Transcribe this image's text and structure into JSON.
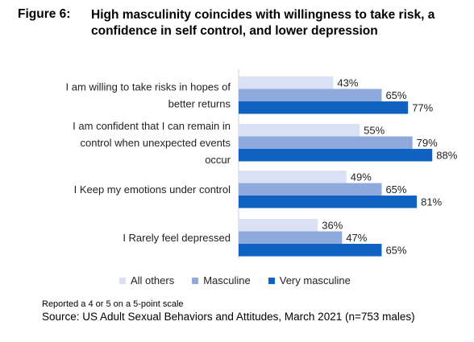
{
  "figure": {
    "label": "Figure 6:",
    "title": "High masculinity coincides with willingness to take risk, a confidence in self control, and lower depression"
  },
  "chart_data": {
    "type": "bar",
    "orientation": "horizontal",
    "categories": [
      [
        "I am willing to take risks in hopes of",
        "better returns"
      ],
      [
        "I am confident that I can remain in",
        "control when unexpected events",
        "occur"
      ],
      [
        "I Keep my emotions under control"
      ],
      [
        "I Rarely feel depressed"
      ]
    ],
    "series": [
      {
        "name": "All others",
        "color": "#dae1f4",
        "values": [
          43,
          55,
          49,
          36
        ],
        "labels": [
          "43%",
          "55%",
          "49%",
          "36%"
        ]
      },
      {
        "name": "Masculine",
        "color": "#8ea9db",
        "values": [
          65,
          79,
          65,
          47
        ],
        "labels": [
          "65%",
          "79%",
          "65%",
          "47%"
        ]
      },
      {
        "name": "Very masculine",
        "color": "#0f62c1",
        "values": [
          77,
          88,
          81,
          65
        ],
        "labels": [
          "77%",
          "88%",
          "81%",
          "65%"
        ]
      }
    ],
    "xlim": [
      0,
      100
    ],
    "grid": false,
    "legend_position": "bottom"
  },
  "legend": {
    "items": [
      {
        "label": "All others",
        "color": "#dae1f4"
      },
      {
        "label": "Masculine",
        "color": "#8ea9db"
      },
      {
        "label": "Very masculine",
        "color": "#0f62c1"
      }
    ]
  },
  "footer": {
    "note": "Reported a 4 or 5 on a 5-point scale",
    "source": "Source: US Adult Sexual Behaviors and Attitudes, March 2021 (n=753 males)"
  }
}
